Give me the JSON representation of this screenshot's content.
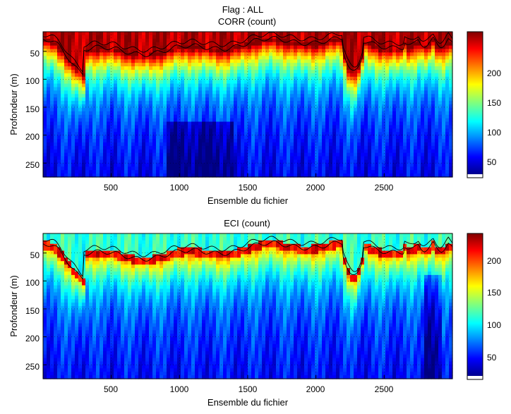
{
  "suptitle": "Flag : ALL",
  "charts": [
    {
      "type": "heatmap",
      "title": "CORR (count)",
      "xlabel": "Ensemble du fichier",
      "ylabel": "Profondeur (m)",
      "xlim": [
        1,
        3000
      ],
      "ylim": [
        15,
        275
      ],
      "y_reversed": true,
      "xticks": [
        500,
        1000,
        1500,
        2000,
        2500
      ],
      "yticks": [
        50,
        100,
        150,
        200,
        250
      ],
      "colorbar": {
        "ticks": [
          50,
          100,
          150,
          200
        ],
        "range": [
          0,
          245
        ],
        "colormap": "jet"
      },
      "grid": true
    },
    {
      "type": "heatmap",
      "title": "ECI (count)",
      "xlabel": "Ensemble du fichier",
      "ylabel": "Profondeur (m)",
      "xlim": [
        1,
        3000
      ],
      "ylim": [
        15,
        275
      ],
      "y_reversed": true,
      "xticks": [
        500,
        1000,
        1500,
        2000,
        2500
      ],
      "yticks": [
        50,
        100,
        150,
        200,
        250
      ],
      "colorbar": {
        "ticks": [
          50,
          100,
          150,
          200
        ],
        "range": [
          0,
          220
        ],
        "colormap": "jet"
      },
      "grid": true
    }
  ]
}
